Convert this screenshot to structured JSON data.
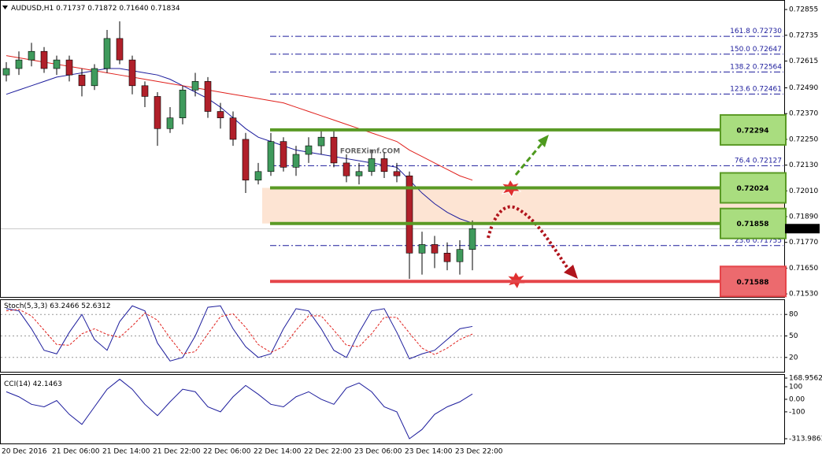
{
  "chart_data": [
    {
      "type": "candlestick",
      "symbol": "AUDUSD,H1",
      "last_low_label": "0.71640",
      "watermark": "FOREXimf.COM",
      "categories": [
        "20 Dec 2016",
        null,
        null,
        null,
        "21 Dec 06:00",
        null,
        null,
        null,
        "21 Dec 14:00",
        null,
        null,
        null,
        "21 Dec 22:00",
        null,
        null,
        null,
        "22 Dec 06:00",
        null,
        null,
        null,
        "22 Dec 14:00",
        null,
        null,
        null,
        "22 Dec 22:00",
        null,
        null,
        null,
        "23 Dec 06:00",
        null,
        null,
        null,
        "23 Dec 14:00",
        null,
        null,
        null,
        "23 Dec 22:00",
        null
      ],
      "open": [
        0.7255,
        0.7258,
        0.7262,
        0.7266,
        0.7258,
        0.7262,
        0.7255,
        0.725,
        0.7258,
        0.7272,
        0.7262,
        0.725,
        0.7245,
        0.723,
        0.7235,
        0.7248,
        0.7252,
        0.7238,
        0.7235,
        0.7225,
        0.7206,
        0.721,
        0.7224,
        0.7212,
        0.7218,
        0.7222,
        0.7226,
        0.7214,
        0.7208,
        0.721,
        0.7216,
        0.721,
        0.7208,
        0.7172,
        0.7176,
        0.7172,
        0.7168,
        0.71737
      ],
      "high": [
        0.7261,
        0.7266,
        0.727,
        0.7268,
        0.7264,
        0.7264,
        0.7258,
        0.726,
        0.7276,
        0.728,
        0.7264,
        0.7252,
        0.7247,
        0.724,
        0.725,
        0.7256,
        0.7254,
        0.7242,
        0.7238,
        0.7228,
        0.7214,
        0.7228,
        0.7226,
        0.7222,
        0.7226,
        0.723,
        0.7229,
        0.7218,
        0.7214,
        0.722,
        0.7219,
        0.7214,
        0.721,
        0.7182,
        0.718,
        0.7177,
        0.7178,
        0.71872
      ],
      "low": [
        0.7252,
        0.7255,
        0.7259,
        0.7256,
        0.7255,
        0.7252,
        0.7245,
        0.7248,
        0.7256,
        0.726,
        0.7246,
        0.724,
        0.7222,
        0.7228,
        0.7232,
        0.7245,
        0.7235,
        0.723,
        0.7222,
        0.72,
        0.7204,
        0.7208,
        0.721,
        0.7208,
        0.7214,
        0.7218,
        0.7212,
        0.7205,
        0.7204,
        0.7208,
        0.7207,
        0.7205,
        0.716,
        0.7162,
        0.7165,
        0.7164,
        0.7162,
        0.7164
      ],
      "close": [
        0.7258,
        0.7262,
        0.7266,
        0.7258,
        0.7262,
        0.7255,
        0.725,
        0.7258,
        0.7272,
        0.7262,
        0.725,
        0.7245,
        0.723,
        0.7235,
        0.7248,
        0.7252,
        0.7238,
        0.7235,
        0.7225,
        0.7206,
        0.721,
        0.7224,
        0.7212,
        0.7218,
        0.7222,
        0.7226,
        0.7214,
        0.7208,
        0.721,
        0.7216,
        0.721,
        0.7208,
        0.7172,
        0.7176,
        0.7172,
        0.7168,
        0.71737,
        0.71834
      ],
      "bull_color": "#3f9a5c",
      "bear_color": "#b0202a",
      "overlays": [
        {
          "color": "#1c1c9c",
          "values": [
            0.7246,
            0.7248,
            0.725,
            0.7252,
            0.7254,
            0.7255,
            0.7256,
            0.7257,
            0.7258,
            0.7258,
            0.7257,
            0.7256,
            0.7255,
            0.7253,
            0.725,
            0.7247,
            0.7244,
            0.724,
            0.7235,
            0.723,
            0.7226,
            0.7224,
            0.7222,
            0.722,
            0.7219,
            0.7218,
            0.7217,
            0.7216,
            0.7215,
            0.7214,
            0.7213,
            0.7212,
            0.7206,
            0.72,
            0.7195,
            0.7191,
            0.7188,
            0.7186
          ]
        },
        {
          "color": "#e0201c",
          "values": [
            0.7264,
            0.7263,
            0.7262,
            0.7261,
            0.726,
            0.7259,
            0.7258,
            0.7257,
            0.7256,
            0.7255,
            0.7254,
            0.7253,
            0.7252,
            0.7251,
            0.725,
            0.7249,
            0.7248,
            0.7247,
            0.7246,
            0.7245,
            0.7244,
            0.7243,
            0.7242,
            0.724,
            0.7238,
            0.7236,
            0.7234,
            0.7232,
            0.723,
            0.7228,
            0.7226,
            0.7224,
            0.722,
            0.7217,
            0.7214,
            0.7211,
            0.7208,
            0.7206
          ]
        }
      ],
      "levels": [
        {
          "value": 0.72294,
          "label": "0.72294",
          "color": "#5a9a25",
          "box": "#a9dd7f"
        },
        {
          "value": 0.72024,
          "label": "0.72024",
          "color": "#5a9a25",
          "box": "#a9dd7f"
        },
        {
          "value": 0.71858,
          "label": "0.71858",
          "color": "#5a9a25",
          "box": "#a9dd7f"
        },
        {
          "value": 0.71588,
          "label": "0.71588",
          "color": "#e5454a",
          "box": "#ec6a6e"
        }
      ],
      "fib_levels": [
        {
          "ratio": "161.8",
          "value": 0.7273,
          "label": "0.72730"
        },
        {
          "ratio": "150.0",
          "value": 0.72647,
          "label": "0.72647"
        },
        {
          "ratio": "138.2",
          "value": 0.72564,
          "label": "0.72564"
        },
        {
          "ratio": "123.6",
          "value": 0.72461,
          "label": "0.72461"
        },
        {
          "ratio": "76.4",
          "value": 0.72127,
          "label": "0.72127"
        },
        {
          "ratio": "23.6",
          "value": 0.71755,
          "label": "0.71755"
        }
      ],
      "ylim": [
        0.71512,
        0.72892
      ],
      "yticks": [
        {
          "value": 0.72855,
          "label": "0.72855"
        },
        {
          "value": 0.72735,
          "label": "0.72735"
        },
        {
          "value": 0.72615,
          "label": "0.72615"
        },
        {
          "value": 0.7249,
          "label": "0.72490"
        },
        {
          "value": 0.7237,
          "label": "0.72370"
        },
        {
          "value": 0.7225,
          "label": "0.72250"
        },
        {
          "value": 0.7213,
          "label": "0.72130"
        },
        {
          "value": 0.7201,
          "label": "0.72010"
        },
        {
          "value": 0.7189,
          "label": "0.71890"
        },
        {
          "value": 0.7177,
          "label": "0.71770"
        },
        {
          "value": 0.7165,
          "label": "0.71650"
        },
        {
          "value": 0.7153,
          "label": "0.71530"
        }
      ],
      "grid": false
    },
    {
      "type": "line",
      "title": "Stoch(5,3,3)",
      "grid": true,
      "ylim": [
        0,
        100
      ],
      "yticks": [
        80,
        50,
        20
      ],
      "series": [
        {
          "color": "#1c1c9c",
          "dash": false,
          "values": [
            88,
            85,
            60,
            30,
            25,
            55,
            80,
            45,
            30,
            70,
            92,
            85,
            40,
            15,
            20,
            50,
            90,
            92,
            60,
            35,
            20,
            25,
            60,
            88,
            85,
            60,
            30,
            20,
            55,
            85,
            88,
            55,
            18,
            25,
            30,
            45,
            60,
            63.2466
          ]
        },
        {
          "color": "#e0201c",
          "dash": true,
          "values": [
            85,
            87,
            78,
            58,
            38,
            37,
            53,
            60,
            52,
            48,
            64,
            82,
            72,
            47,
            25,
            28,
            53,
            77,
            81,
            62,
            38,
            27,
            35,
            58,
            78,
            78,
            58,
            37,
            35,
            53,
            76,
            76,
            54,
            33,
            24,
            33,
            45,
            52.6312
          ]
        }
      ]
    },
    {
      "type": "line",
      "title": "CCI(14)",
      "grid": false,
      "ylim": [
        -313.9863,
        168.9562
      ],
      "yticks": [
        168.9562,
        100,
        {
          "value": 0,
          "label": "0.00"
        },
        -100,
        -313.9863
      ],
      "series": [
        {
          "color": "#1c1c9c",
          "dash": false,
          "values": [
            60,
            20,
            -40,
            -60,
            -10,
            -120,
            -200,
            -60,
            80,
            160,
            80,
            -40,
            -130,
            -20,
            80,
            60,
            -60,
            -100,
            20,
            110,
            40,
            -40,
            -60,
            20,
            60,
            0,
            -40,
            90,
            130,
            60,
            -60,
            -100,
            -313.9863,
            -240,
            -120,
            -60,
            -20,
            42.1463
          ]
        }
      ]
    }
  ]
}
